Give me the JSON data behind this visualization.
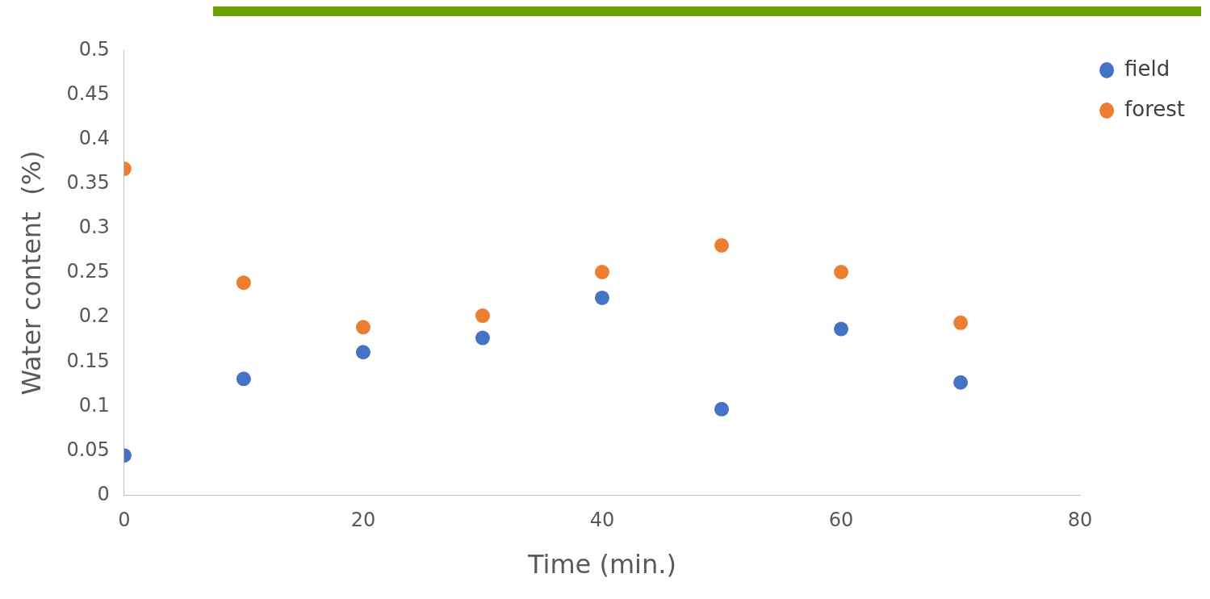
{
  "chart_data": {
    "type": "scatter",
    "xlabel": "Time (min.)",
    "ylabel": "Water content  (%)",
    "xlim": [
      0,
      80
    ],
    "xticks": [
      0,
      20,
      40,
      60,
      80
    ],
    "ylim": [
      0,
      0.5
    ],
    "yticks": [
      0,
      0.05,
      0.1,
      0.15,
      0.2,
      0.25,
      0.3,
      0.35,
      0.4,
      0.45,
      0.5
    ],
    "grid": false,
    "legend": "top right",
    "marker": "circle",
    "series": [
      {
        "name": "field",
        "color": "#4472c4",
        "x": [
          0,
          10,
          20,
          30,
          40,
          50,
          60,
          70
        ],
        "values": [
          0.045,
          0.131,
          0.161,
          0.177,
          0.222,
          0.097,
          0.187,
          0.127
        ]
      },
      {
        "name": "forest",
        "color": "#ed7d31",
        "x": [
          0,
          10,
          20,
          30,
          40,
          50,
          60,
          70
        ],
        "values": [
          0.367,
          0.239,
          0.189,
          0.202,
          0.251,
          0.281,
          0.251,
          0.194
        ]
      }
    ]
  }
}
